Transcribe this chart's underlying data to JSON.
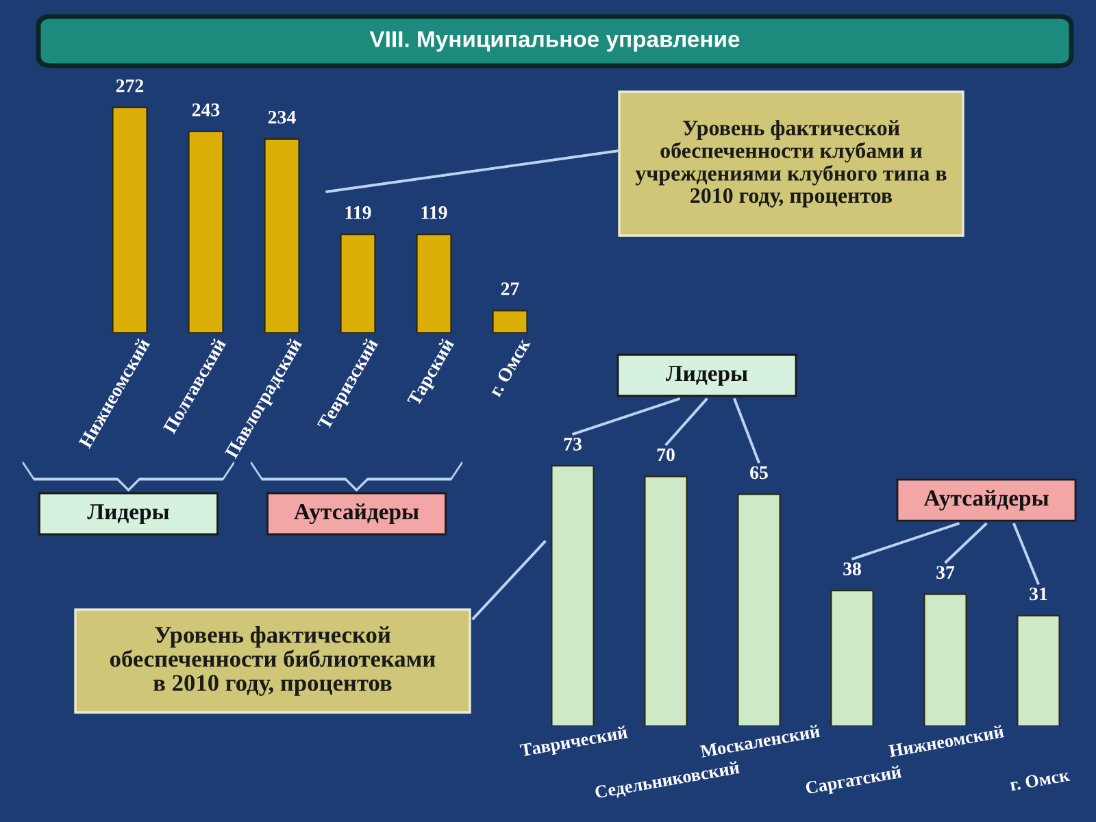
{
  "chart_data": [
    {
      "type": "bar",
      "title": "VIII. Муниципальное управление",
      "categories": [
        "Нижнеомский",
        "Полтавский",
        "Павлоградский",
        "Тевризский",
        "Тарский",
        "г. Омск"
      ],
      "values": [
        272,
        243,
        234,
        119,
        119,
        27
      ],
      "color": "#dcae08",
      "data_labels": true,
      "annotations": [
        "Уровень фактической обеспеченности клубами и учреждениями клубного типа в 2010 году, процентов",
        "Лидеры",
        "Аутсайдеры"
      ],
      "tick_labels": "x"
    },
    {
      "type": "bar",
      "title": "Уровень фактической обеспеченности библиотеками в 2010 году, процентов",
      "categories": [
        "Таврический",
        "Седельниковский",
        "Москаленский",
        "Саргатский",
        "Нижнеомский",
        "г. Омск"
      ],
      "values": [
        73,
        70,
        65,
        38,
        37,
        31
      ],
      "color": "#cde9c6",
      "data_labels": true,
      "annotations": [
        "Лидеры",
        "Аутсайдеры"
      ],
      "tick_labels": "x"
    }
  ]
}
